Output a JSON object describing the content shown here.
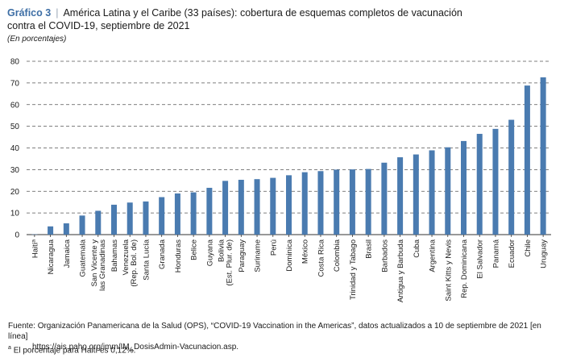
{
  "title": {
    "label": "Gráfico 3",
    "separator": "|",
    "line1": "América Latina y el Caribe (33 países): cobertura de esquemas completos de vacunación",
    "line2": "contra el COVID-19, septiembre de 2021",
    "units": "(En porcentajes)"
  },
  "chart_data": {
    "type": "bar",
    "title": "América Latina y el Caribe (33 países): cobertura de esquemas completos de vacunación contra el COVID-19, septiembre de 2021",
    "xlabel": "",
    "ylabel": "(En porcentajes)",
    "ylim": [
      0,
      80
    ],
    "yticks": [
      0,
      10,
      20,
      30,
      40,
      50,
      60,
      70,
      80
    ],
    "grid": true,
    "bar_color": "#4a7bb0",
    "categories": [
      [
        "Haití",
        "a"
      ],
      [
        "Nicaragua"
      ],
      [
        "Jamaica"
      ],
      [
        "Guatemala"
      ],
      [
        "San Vicente y",
        "las Granadinas"
      ],
      [
        "Bahamas"
      ],
      [
        "Venezuela",
        "(Rep. Bol. de)"
      ],
      [
        "Santa Lucía"
      ],
      [
        "Granada"
      ],
      [
        "Honduras"
      ],
      [
        "Belice"
      ],
      [
        "Guyana"
      ],
      [
        "Bolivia",
        "(Est. Plur. de)"
      ],
      [
        "Paraguay"
      ],
      [
        "Suriname"
      ],
      [
        "Perú"
      ],
      [
        "Dominica"
      ],
      [
        "México"
      ],
      [
        "Costa Rica"
      ],
      [
        "Colombia"
      ],
      [
        "Trinidad y Tabago"
      ],
      [
        "Brasil"
      ],
      [
        "Barbados"
      ],
      [
        "Antigua y Barbuda"
      ],
      [
        "Cuba"
      ],
      [
        "Argentina"
      ],
      [
        "Saint Kitts y Nevis"
      ],
      [
        "Rep. Dominicana"
      ],
      [
        "El Salvador"
      ],
      [
        "Panamá"
      ],
      [
        "Ecuador"
      ],
      [
        "Chile"
      ],
      [
        "Uruguay"
      ]
    ],
    "values": [
      0.12,
      3.8,
      5.2,
      8.8,
      11.0,
      13.8,
      14.8,
      15.3,
      17.3,
      19.0,
      19.5,
      21.6,
      24.8,
      25.3,
      25.6,
      26.2,
      27.4,
      28.8,
      29.3,
      30.0,
      30.1,
      30.3,
      33.2,
      35.7,
      37.0,
      38.9,
      40.3,
      43.2,
      46.5,
      48.8,
      53.0,
      68.8,
      72.6
    ]
  },
  "source": {
    "text": "Fuente: Organización Panamericana de la Salud (OPS), “COVID-19 Vaccination in the Americas”, datos actualizados a 10 de septiembre de 2021 [en línea]",
    "url": "https://ais.paho.org/imm/IM_DosisAdmin-Vacunacion.asp."
  },
  "footnote": {
    "marker": "a",
    "text": "El porcentaje para Haití es 0,12%."
  }
}
